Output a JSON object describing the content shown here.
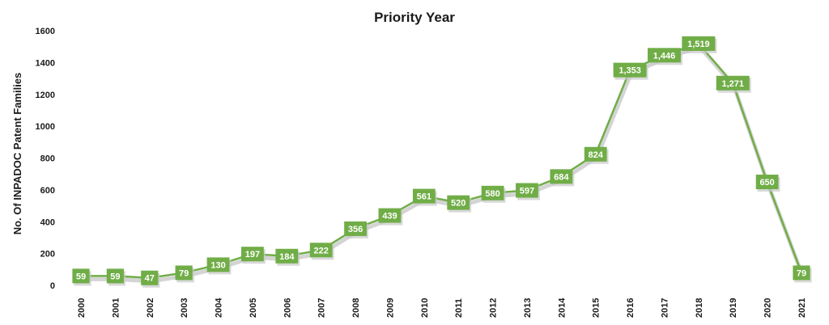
{
  "chart_data": {
    "type": "line",
    "title": "Priority Year",
    "xlabel": "",
    "ylabel": "No. Of INPADOC Patent Families",
    "ylim": [
      0,
      1600
    ],
    "yticks": [
      "0",
      "200",
      "400",
      "600",
      "800",
      "1000",
      "1200",
      "1400",
      "1600"
    ],
    "x": [
      "2000",
      "2001",
      "2002",
      "2003",
      "2004",
      "2005",
      "2006",
      "2007",
      "2008",
      "2009",
      "2010",
      "2011",
      "2012",
      "2013",
      "2014",
      "2015",
      "2016",
      "2017",
      "2018",
      "2019",
      "2020",
      "2021"
    ],
    "values": [
      59,
      59,
      47,
      79,
      130,
      197,
      184,
      222,
      356,
      439,
      561,
      520,
      580,
      597,
      684,
      824,
      1353,
      1446,
      1519,
      1271,
      650,
      79
    ],
    "data_labels": [
      "59",
      "59",
      "47",
      "79",
      "130",
      "197",
      "184",
      "222",
      "356",
      "439",
      "561",
      "520",
      "580",
      "597",
      "684",
      "824",
      "1,353",
      "1,446",
      "1,519",
      "1,271",
      "650",
      "79"
    ],
    "grid": false,
    "legend": "none",
    "colors": {
      "line": "#70ad47",
      "label_bg": "#70ad47",
      "label_text": "#ffffff",
      "shadow": "#c9c9c9"
    }
  }
}
